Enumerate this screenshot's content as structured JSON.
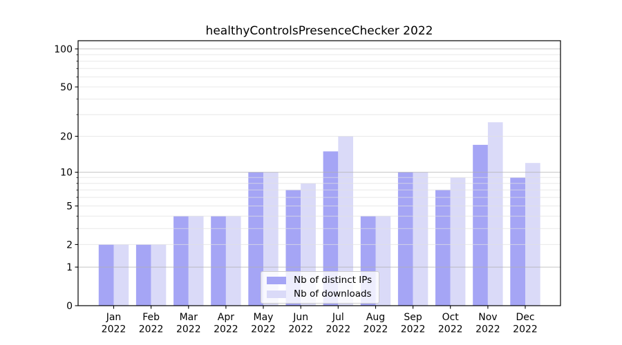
{
  "figure": {
    "title": "healthyControlsPresenceChecker 2022"
  },
  "chart_data": {
    "type": "bar",
    "title": "healthyControlsPresenceChecker 2022",
    "categories": [
      "Jan",
      "Feb",
      "Mar",
      "Apr",
      "May",
      "Jun",
      "Jul",
      "Aug",
      "Sep",
      "Oct",
      "Nov",
      "Dec"
    ],
    "year_label": "2022",
    "series": [
      {
        "name": "Nb of distinct IPs",
        "color": "#a5a5f5",
        "values": [
          2,
          2,
          4,
          4,
          10,
          7,
          15,
          4,
          10,
          7,
          17,
          9
        ]
      },
      {
        "name": "Nb of downloads",
        "color": "#dadaf8",
        "values": [
          2,
          2,
          4,
          4,
          10,
          8,
          20,
          4,
          10,
          9,
          26,
          12
        ]
      }
    ],
    "xlabel": "",
    "ylabel": "",
    "yscale": "log1p",
    "ylim": [
      0,
      116
    ],
    "yticks_labeled": [
      0,
      1,
      2,
      5,
      10,
      20,
      50,
      100
    ],
    "yticks_major_grid": [
      1,
      10,
      100
    ],
    "yticks_minor": [
      3,
      4,
      6,
      7,
      8,
      9,
      30,
      40,
      60,
      70,
      80,
      90
    ],
    "grid": "on",
    "legend_position": "lower center",
    "colors": {
      "major_grid": "#b0b0b0",
      "minor_grid": "#e0e0e0",
      "spine": "#000000",
      "text": "#000000",
      "background": "#ffffff"
    }
  }
}
